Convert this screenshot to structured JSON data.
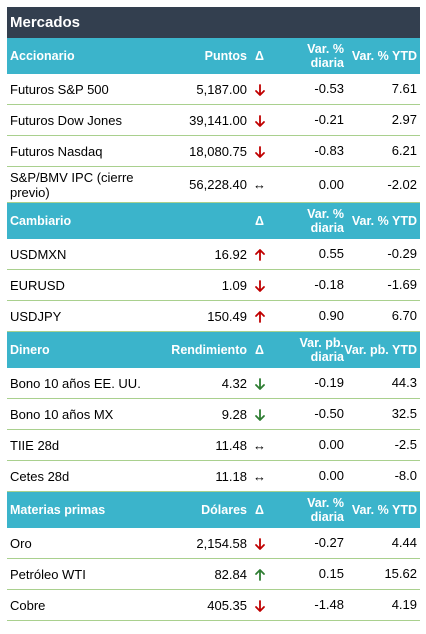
{
  "title": "Mercados",
  "colors": {
    "header_bg": "#3bb4cb",
    "title_bg": "#333f4f",
    "up": "#c00000",
    "down": "#c00000",
    "green": "#2e7d32",
    "rule": "#a9d08e"
  },
  "sections": [
    {
      "headers": [
        "Accionario",
        "Puntos",
        "Δ",
        "Var. % diaria",
        "Var. % YTD"
      ],
      "rows": [
        {
          "name": "Futuros S&P 500",
          "value": "5,187.00",
          "delta": "down-red",
          "daily": "-0.53",
          "ytd": "7.61"
        },
        {
          "name": "Futuros Dow Jones",
          "value": "39,141.00",
          "delta": "down-red",
          "daily": "-0.21",
          "ytd": "2.97"
        },
        {
          "name": "Futuros Nasdaq",
          "value": "18,080.75",
          "delta": "down-red",
          "daily": "-0.83",
          "ytd": "6.21"
        },
        {
          "name": "S&P/BMV IPC (cierre previo)",
          "value": "56,228.40",
          "delta": "flat",
          "daily": "0.00",
          "ytd": "-2.02"
        }
      ]
    },
    {
      "headers": [
        "Cambiario",
        "",
        "Δ",
        "Var. % diaria",
        "Var. % YTD"
      ],
      "rows": [
        {
          "name": "USDMXN",
          "value": "16.92",
          "delta": "up-red",
          "daily": "0.55",
          "ytd": "-0.29"
        },
        {
          "name": "EURUSD",
          "value": "1.09",
          "delta": "down-red",
          "daily": "-0.18",
          "ytd": "-1.69"
        },
        {
          "name": "USDJPY",
          "value": "150.49",
          "delta": "up-red",
          "daily": "0.90",
          "ytd": "6.70"
        }
      ]
    },
    {
      "headers": [
        "Dinero",
        "Rendimiento",
        "Δ",
        "Var. pb. diaria",
        "Var. pb. YTD"
      ],
      "rows": [
        {
          "name": "Bono 10 años EE. UU.",
          "value": "4.32",
          "delta": "down-green",
          "daily": "-0.19",
          "ytd": "44.3"
        },
        {
          "name": "Bono 10 años MX",
          "value": "9.28",
          "delta": "down-green",
          "daily": "-0.50",
          "ytd": "32.5"
        },
        {
          "name": "TIIE 28d",
          "value": "11.48",
          "delta": "flat",
          "daily": "0.00",
          "ytd": "-2.5"
        },
        {
          "name": "Cetes 28d",
          "value": "11.18",
          "delta": "flat",
          "daily": "0.00",
          "ytd": "-8.0"
        }
      ]
    },
    {
      "headers": [
        "Materias primas",
        "Dólares",
        "Δ",
        "Var. % diaria",
        "Var. % YTD"
      ],
      "rows": [
        {
          "name": "Oro",
          "value": "2,154.58",
          "delta": "down-red",
          "daily": "-0.27",
          "ytd": "4.44"
        },
        {
          "name": "Petróleo WTI",
          "value": "82.84",
          "delta": "up-green",
          "daily": "0.15",
          "ytd": "15.62"
        },
        {
          "name": "Cobre",
          "value": "405.35",
          "delta": "down-red",
          "daily": "-1.48",
          "ytd": "4.19"
        }
      ]
    }
  ]
}
